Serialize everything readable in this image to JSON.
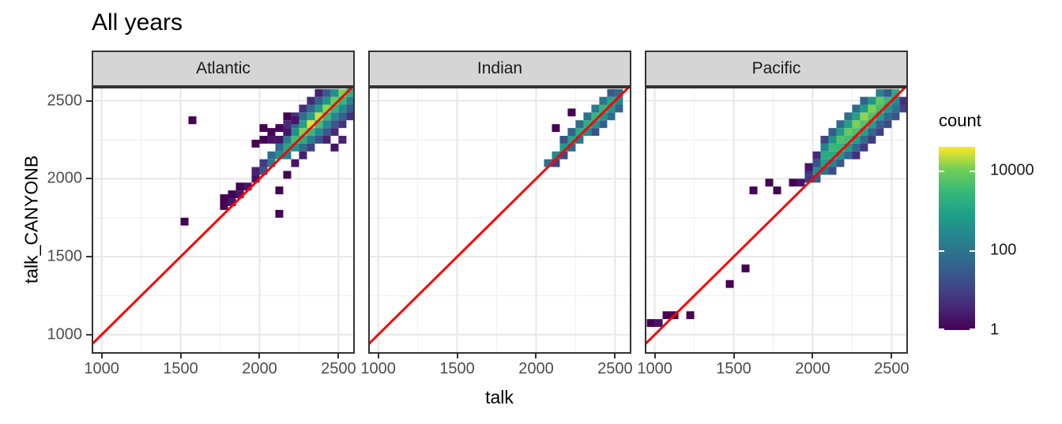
{
  "title": "All years",
  "x_axis_title": "talk",
  "y_axis_title": "talk_CANYONB",
  "facets": [
    {
      "label": "Atlantic"
    },
    {
      "label": "Indian"
    },
    {
      "label": "Pacific"
    }
  ],
  "legend": {
    "title": "count",
    "tick_values": [
      10000,
      100,
      1
    ],
    "tick_labels": [
      "10000",
      "100",
      "1"
    ],
    "max_count": 40000
  },
  "colors": {
    "reference_line": "#ff0000",
    "strip_background": "#d5d5d5",
    "panel_background": "#ffffff",
    "panel_border": "#333333",
    "grid_major": "#e7e7e7",
    "grid_minor": "#f3f3f3",
    "axis_text": "#4d4d4d",
    "title_text": "#000000",
    "viridis_stops": [
      "#440154",
      "#482878",
      "#3e4a89",
      "#31688e",
      "#26828e",
      "#1f9e89",
      "#35b779",
      "#6ece58",
      "#fde725"
    ]
  },
  "chart_data": {
    "type": "heatmap",
    "subtype": "2d-binned-scatter (geom_bin2d)",
    "title": "All years",
    "xlabel": "talk",
    "ylabel": "talk_CANYONB",
    "facet_labels": [
      "Atlantic",
      "Indian",
      "Pacific"
    ],
    "xlim": [
      937,
      2603
    ],
    "ylim": [
      878,
      2589
    ],
    "x_ticks": [
      1000,
      1500,
      2000,
      2500
    ],
    "y_ticks": [
      1000,
      1500,
      2000,
      2500
    ],
    "x_minor_ticks": [
      1250,
      1750,
      2250
    ],
    "y_minor_ticks": [
      1250,
      1750,
      2250
    ],
    "grid": true,
    "legend_position": "right",
    "binwidth": 50,
    "fill_scale": {
      "palette": "viridis",
      "transform": "log10",
      "limits": [
        1,
        40000
      ],
      "legend_ticks": [
        1,
        100,
        10000
      ]
    },
    "reference_line": "y = x (red identity line)",
    "panels": [
      {
        "facet": "Atlantic",
        "bins": [
          [
            2075,
            2100,
            150
          ],
          [
            2125,
            2150,
            400
          ],
          [
            2175,
            2200,
            1200
          ],
          [
            2225,
            2250,
            4000
          ],
          [
            2275,
            2300,
            12000
          ],
          [
            2325,
            2350,
            30000
          ],
          [
            2375,
            2400,
            25000
          ],
          [
            2425,
            2450,
            15000
          ],
          [
            2475,
            2500,
            10000
          ],
          [
            2525,
            2550,
            12000
          ],
          [
            2575,
            2600,
            8000
          ],
          [
            2175,
            2150,
            200
          ],
          [
            2225,
            2200,
            500
          ],
          [
            2275,
            2250,
            1500
          ],
          [
            2325,
            2300,
            3000
          ],
          [
            2375,
            2350,
            3500
          ],
          [
            2425,
            2400,
            3000
          ],
          [
            2475,
            2450,
            2500
          ],
          [
            2525,
            2500,
            2500
          ],
          [
            2575,
            2550,
            2000
          ],
          [
            2125,
            2200,
            60
          ],
          [
            2175,
            2250,
            150
          ],
          [
            2225,
            2300,
            400
          ],
          [
            2275,
            2350,
            900
          ],
          [
            2325,
            2400,
            900
          ],
          [
            2375,
            2450,
            700
          ],
          [
            2425,
            2500,
            500
          ],
          [
            2475,
            2550,
            400
          ],
          [
            2275,
            2200,
            60
          ],
          [
            2325,
            2250,
            150
          ],
          [
            2375,
            2300,
            300
          ],
          [
            2425,
            2350,
            300
          ],
          [
            2475,
            2400,
            250
          ],
          [
            2525,
            2450,
            300
          ],
          [
            2575,
            2500,
            200
          ],
          [
            2175,
            2300,
            30
          ],
          [
            2225,
            2350,
            60
          ],
          [
            2275,
            2400,
            80
          ],
          [
            2325,
            2450,
            60
          ],
          [
            2375,
            2500,
            40
          ],
          [
            2425,
            2550,
            30
          ],
          [
            2325,
            2200,
            10
          ],
          [
            2375,
            2250,
            20
          ],
          [
            2425,
            2300,
            30
          ],
          [
            2475,
            2350,
            25
          ],
          [
            2525,
            2400,
            40
          ],
          [
            2575,
            2450,
            30
          ],
          [
            2175,
            2350,
            4
          ],
          [
            2225,
            2400,
            6
          ],
          [
            2275,
            2450,
            5
          ],
          [
            2325,
            2500,
            4
          ],
          [
            2375,
            2550,
            3
          ],
          [
            2425,
            2250,
            3
          ],
          [
            2475,
            2300,
            4
          ],
          [
            2525,
            2350,
            6
          ],
          [
            2575,
            2400,
            5
          ],
          [
            2025,
            2050,
            20
          ],
          [
            2025,
            2100,
            8
          ],
          [
            1975,
            2000,
            2
          ],
          [
            1975,
            2050,
            3
          ],
          [
            1925,
            1950,
            2
          ],
          [
            1875,
            1900,
            2
          ],
          [
            1875,
            1950,
            1
          ],
          [
            1825,
            1850,
            2
          ],
          [
            1825,
            1900,
            1
          ],
          [
            1775,
            1825,
            1
          ],
          [
            1775,
            1875,
            1
          ],
          [
            2075,
            2150,
            60
          ],
          [
            2125,
            2250,
            2
          ],
          [
            2075,
            2250,
            2
          ],
          [
            2025,
            2250,
            1
          ],
          [
            2075,
            2300,
            1
          ],
          [
            2125,
            2325,
            1
          ],
          [
            2175,
            2300,
            2
          ],
          [
            2025,
            2325,
            1
          ],
          [
            1975,
            2225,
            1
          ],
          [
            2225,
            2375,
            2
          ],
          [
            2175,
            2400,
            1
          ],
          [
            1575,
            2375,
            1
          ],
          [
            1525,
            1725,
            1
          ],
          [
            2125,
            1775,
            1
          ],
          [
            2125,
            1925,
            1
          ],
          [
            2175,
            2025,
            1
          ],
          [
            2225,
            2100,
            2
          ],
          [
            2275,
            2150,
            3
          ],
          [
            2475,
            2200,
            2
          ],
          [
            2525,
            2250,
            3
          ]
        ]
      },
      {
        "facet": "Indian",
        "bins": [
          [
            2075,
            2100,
            80
          ],
          [
            2125,
            2150,
            300
          ],
          [
            2175,
            2200,
            700
          ],
          [
            2225,
            2250,
            1000
          ],
          [
            2275,
            2300,
            1500
          ],
          [
            2325,
            2350,
            2000
          ],
          [
            2375,
            2400,
            3000
          ],
          [
            2425,
            2450,
            2500
          ],
          [
            2475,
            2500,
            1200
          ],
          [
            2225,
            2200,
            60
          ],
          [
            2275,
            2250,
            150
          ],
          [
            2325,
            2300,
            300
          ],
          [
            2375,
            2350,
            500
          ],
          [
            2425,
            2400,
            600
          ],
          [
            2475,
            2450,
            500
          ],
          [
            2525,
            2500,
            300
          ],
          [
            2175,
            2250,
            20
          ],
          [
            2225,
            2300,
            40
          ],
          [
            2275,
            2350,
            60
          ],
          [
            2325,
            2400,
            100
          ],
          [
            2375,
            2450,
            150
          ],
          [
            2425,
            2500,
            100
          ],
          [
            2375,
            2300,
            20
          ],
          [
            2425,
            2350,
            40
          ],
          [
            2475,
            2400,
            60
          ],
          [
            2525,
            2450,
            40
          ],
          [
            2125,
            2100,
            10
          ],
          [
            2175,
            2150,
            15
          ],
          [
            2475,
            2550,
            30
          ],
          [
            2525,
            2550,
            60
          ],
          [
            2225,
            2425,
            1
          ],
          [
            2125,
            2325,
            1
          ]
        ]
      },
      {
        "facet": "Pacific",
        "bins": [
          [
            2075,
            2150,
            1500
          ],
          [
            2125,
            2200,
            3000
          ],
          [
            2175,
            2250,
            5000
          ],
          [
            2225,
            2300,
            8000
          ],
          [
            2275,
            2350,
            12000
          ],
          [
            2325,
            2400,
            15000
          ],
          [
            2375,
            2450,
            12000
          ],
          [
            2425,
            2500,
            8000
          ],
          [
            2025,
            2050,
            300
          ],
          [
            2075,
            2100,
            800
          ],
          [
            2125,
            2150,
            1500
          ],
          [
            2175,
            2200,
            2500
          ],
          [
            2225,
            2250,
            3500
          ],
          [
            2275,
            2300,
            4500
          ],
          [
            2325,
            2350,
            5000
          ],
          [
            2375,
            2400,
            5000
          ],
          [
            2425,
            2450,
            4000
          ],
          [
            2475,
            2500,
            3000
          ],
          [
            2525,
            2550,
            1500
          ],
          [
            2075,
            2200,
            200
          ],
          [
            2125,
            2250,
            400
          ],
          [
            2175,
            2300,
            700
          ],
          [
            2225,
            2350,
            900
          ],
          [
            2275,
            2400,
            900
          ],
          [
            2325,
            2450,
            700
          ],
          [
            2375,
            2500,
            500
          ],
          [
            2425,
            2550,
            200
          ],
          [
            2075,
            2050,
            100
          ],
          [
            2125,
            2100,
            200
          ],
          [
            2175,
            2150,
            400
          ],
          [
            2225,
            2200,
            600
          ],
          [
            2275,
            2250,
            800
          ],
          [
            2325,
            2300,
            900
          ],
          [
            2375,
            2350,
            800
          ],
          [
            2425,
            2400,
            700
          ],
          [
            2475,
            2450,
            500
          ],
          [
            2525,
            2500,
            300
          ],
          [
            2125,
            2300,
            30
          ],
          [
            2175,
            2350,
            60
          ],
          [
            2225,
            2400,
            80
          ],
          [
            2275,
            2450,
            60
          ],
          [
            2325,
            2500,
            40
          ],
          [
            2125,
            2050,
            15
          ],
          [
            2175,
            2100,
            30
          ],
          [
            2225,
            2150,
            50
          ],
          [
            2275,
            2200,
            60
          ],
          [
            2325,
            2250,
            60
          ],
          [
            2375,
            2300,
            50
          ],
          [
            2425,
            2350,
            40
          ],
          [
            2475,
            2400,
            60
          ],
          [
            2525,
            2450,
            80
          ],
          [
            2275,
            2150,
            5
          ],
          [
            2325,
            2200,
            8
          ],
          [
            2375,
            2250,
            8
          ],
          [
            2425,
            2300,
            10
          ],
          [
            2475,
            2350,
            15
          ],
          [
            2525,
            2400,
            20
          ],
          [
            2575,
            2450,
            10
          ],
          [
            2475,
            2550,
            30
          ],
          [
            2575,
            2500,
            5
          ],
          [
            2025,
            2100,
            20
          ],
          [
            2025,
            2150,
            4
          ],
          [
            1975,
            2050,
            6
          ],
          [
            2025,
            2000,
            30
          ],
          [
            1975,
            2000,
            8
          ],
          [
            2075,
            2250,
            10
          ],
          [
            1975,
            2075,
            2
          ],
          [
            1925,
            1975,
            2
          ],
          [
            1875,
            1975,
            1
          ],
          [
            1775,
            1925,
            1
          ],
          [
            1725,
            1975,
            1
          ],
          [
            1625,
            1925,
            1
          ],
          [
            1575,
            1425,
            1
          ],
          [
            1475,
            1325,
            1
          ],
          [
            1225,
            1125,
            1
          ],
          [
            1125,
            1125,
            1
          ],
          [
            1075,
            1125,
            1
          ],
          [
            1025,
            1075,
            2
          ],
          [
            975,
            1075,
            1
          ]
        ]
      }
    ]
  }
}
